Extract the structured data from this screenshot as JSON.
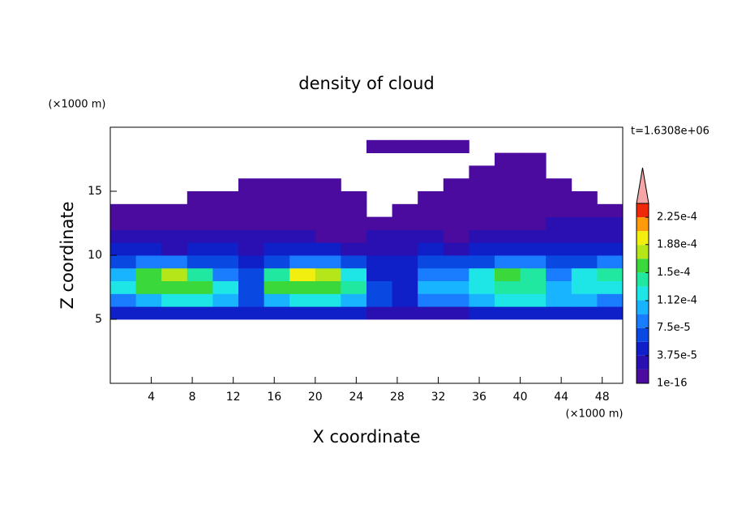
{
  "chart_data": {
    "type": "contour",
    "title": "density of cloud",
    "xlabel": "X coordinate",
    "ylabel": "Z coordinate",
    "x_unit": "(×1000 m)",
    "y_unit": "(×1000 m)",
    "time_label": "t=1.6308e+06",
    "xlim": [
      0,
      50
    ],
    "ylim": [
      0,
      20
    ],
    "xticks": [
      4,
      8,
      12,
      16,
      20,
      24,
      28,
      32,
      36,
      40,
      44,
      48
    ],
    "yticks": [
      5,
      10,
      15
    ],
    "x": [
      1.25,
      3.75,
      6.25,
      8.75,
      11.25,
      13.75,
      16.25,
      18.75,
      21.25,
      23.75,
      26.25,
      28.75,
      31.25,
      33.75,
      36.25,
      38.75,
      41.25,
      43.75,
      46.25,
      48.75
    ],
    "y": [
      0.5,
      1.5,
      2.5,
      3.5,
      4.5,
      5.5,
      6.5,
      7.5,
      8.5,
      9.5,
      10.5,
      11.5,
      12.5,
      13.5,
      14.5,
      15.5,
      16.5,
      17.5,
      18.5,
      19.5
    ],
    "z": [
      [
        null,
        null,
        null,
        null,
        null,
        null,
        null,
        null,
        null,
        null,
        null,
        null,
        null,
        null,
        null,
        null,
        null,
        null,
        null,
        null
      ],
      [
        null,
        null,
        null,
        null,
        null,
        null,
        null,
        null,
        null,
        null,
        null,
        null,
        null,
        null,
        null,
        null,
        null,
        null,
        null,
        null
      ],
      [
        null,
        null,
        null,
        null,
        null,
        null,
        null,
        null,
        null,
        null,
        null,
        null,
        null,
        null,
        null,
        null,
        null,
        null,
        null,
        null
      ],
      [
        null,
        null,
        null,
        null,
        null,
        null,
        null,
        null,
        null,
        null,
        null,
        null,
        null,
        null,
        null,
        null,
        null,
        null,
        null,
        null
      ],
      [
        null,
        null,
        null,
        null,
        null,
        null,
        null,
        null,
        null,
        null,
        null,
        null,
        null,
        null,
        null,
        null,
        null,
        null,
        null,
        null
      ],
      [
        4e-05,
        4e-05,
        4e-05,
        4e-05,
        4e-05,
        4e-05,
        4e-05,
        4e-05,
        4e-05,
        4e-05,
        3e-05,
        3e-05,
        3e-05,
        3e-05,
        4e-05,
        4e-05,
        4e-05,
        4e-05,
        4e-05,
        4e-05
      ],
      [
        9e-05,
        0.00011,
        0.00012,
        0.00012,
        0.0001,
        6e-05,
        0.00011,
        0.00012,
        0.00012,
        0.00011,
        6e-05,
        5e-05,
        9e-05,
        9e-05,
        0.00011,
        0.00012,
        0.00012,
        0.0001,
        0.0001,
        9e-05
      ],
      [
        0.00012,
        0.00016,
        0.00016,
        0.00015,
        0.00012,
        7e-05,
        0.00015,
        0.00016,
        0.00016,
        0.00014,
        6e-05,
        5e-05,
        0.0001,
        0.00011,
        0.00013,
        0.00014,
        0.00014,
        0.0001,
        0.00013,
        0.00012
      ],
      [
        0.0001,
        0.00016,
        0.00017,
        0.00014,
        9e-05,
        6e-05,
        0.00014,
        0.00019,
        0.00018,
        0.00012,
        5e-05,
        4e-05,
        8e-05,
        9e-05,
        0.00012,
        0.00015,
        0.00014,
        8e-05,
        0.00012,
        0.00014
      ],
      [
        6e-05,
        8e-05,
        8e-05,
        7e-05,
        6e-05,
        5e-05,
        7e-05,
        9e-05,
        8e-05,
        6e-05,
        5e-05,
        4e-05,
        6e-05,
        6e-05,
        7e-05,
        8e-05,
        8e-05,
        6e-05,
        7e-05,
        8e-05
      ],
      [
        4e-05,
        4e-05,
        3e-05,
        4e-05,
        4e-05,
        3e-05,
        4e-05,
        4e-05,
        4e-05,
        3e-05,
        3e-05,
        3e-05,
        4e-05,
        3e-05,
        4e-05,
        4e-05,
        4e-05,
        4e-05,
        5e-05,
        5e-05
      ],
      [
        2e-05,
        2e-05,
        2e-05,
        2e-05,
        2e-05,
        2e-05,
        2e-05,
        2e-05,
        1e-05,
        1e-05,
        2e-05,
        2e-05,
        2e-05,
        1e-05,
        2e-05,
        2e-05,
        2e-05,
        3e-05,
        3e-05,
        3e-05
      ],
      [
        1e-05,
        1e-05,
        1e-05,
        1e-05,
        1e-05,
        1e-05,
        1e-05,
        1e-05,
        1e-05,
        1e-05,
        1e-05,
        1e-05,
        1e-05,
        1e-05,
        1e-05,
        1e-05,
        1e-05,
        2e-05,
        2e-05,
        2e-05
      ],
      [
        5e-06,
        5e-06,
        5e-06,
        5e-06,
        5e-06,
        5e-06,
        5e-06,
        5e-06,
        5e-06,
        5e-06,
        null,
        5e-06,
        5e-06,
        5e-06,
        5e-06,
        5e-06,
        5e-06,
        1e-05,
        1e-05,
        1e-05
      ],
      [
        null,
        null,
        null,
        5e-06,
        5e-06,
        5e-06,
        5e-06,
        5e-06,
        5e-06,
        5e-06,
        null,
        null,
        5e-06,
        5e-06,
        5e-06,
        5e-06,
        5e-06,
        5e-06,
        5e-06,
        null
      ],
      [
        null,
        null,
        null,
        null,
        null,
        5e-06,
        5e-06,
        5e-06,
        5e-06,
        null,
        null,
        null,
        null,
        5e-06,
        5e-06,
        5e-06,
        5e-06,
        5e-06,
        null,
        null
      ],
      [
        null,
        null,
        null,
        null,
        null,
        null,
        null,
        null,
        null,
        null,
        null,
        null,
        null,
        null,
        5e-06,
        5e-06,
        5e-06,
        null,
        null,
        null
      ],
      [
        null,
        null,
        null,
        null,
        null,
        null,
        null,
        null,
        null,
        null,
        null,
        null,
        null,
        null,
        null,
        5e-06,
        5e-06,
        null,
        null,
        null
      ],
      [
        null,
        null,
        null,
        null,
        null,
        null,
        null,
        null,
        null,
        null,
        5e-06,
        5e-06,
        5e-06,
        5e-06,
        null,
        null,
        null,
        null,
        null,
        null
      ],
      [
        null,
        null,
        null,
        null,
        null,
        null,
        null,
        null,
        null,
        null,
        null,
        null,
        null,
        null,
        null,
        null,
        null,
        null,
        null,
        null
      ]
    ],
    "levels": [
      1e-16,
      1.875e-05,
      3.75e-05,
      5.625e-05,
      7.5e-05,
      9.375e-05,
      0.0001125,
      0.00013125,
      0.00015,
      0.00016875,
      0.0001875,
      0.00020625,
      0.000225
    ],
    "colors": [
      "#4b0b9e",
      "#2a10b0",
      "#1020c8",
      "#0a48e2",
      "#1a7cff",
      "#18b4ff",
      "#1ee6e6",
      "#20e8a0",
      "#3ad83a",
      "#b4e61a",
      "#f2ef0f",
      "#ff9a0a",
      "#f0280a"
    ],
    "extend_color": "#f5a5a5",
    "clim": [
      1e-16,
      0.00024375
    ],
    "cticks": [
      {
        "value": 1e-16,
        "label": "1e-16"
      },
      {
        "value": 3.75e-05,
        "label": "3.75e-5"
      },
      {
        "value": 7.5e-05,
        "label": "7.5e-5"
      },
      {
        "value": 0.000112,
        "label": "1.12e-4"
      },
      {
        "value": 0.00015,
        "label": "1.5e-4"
      },
      {
        "value": 0.000188,
        "label": "1.88e-4"
      },
      {
        "value": 0.000225,
        "label": "2.25e-4"
      }
    ]
  }
}
